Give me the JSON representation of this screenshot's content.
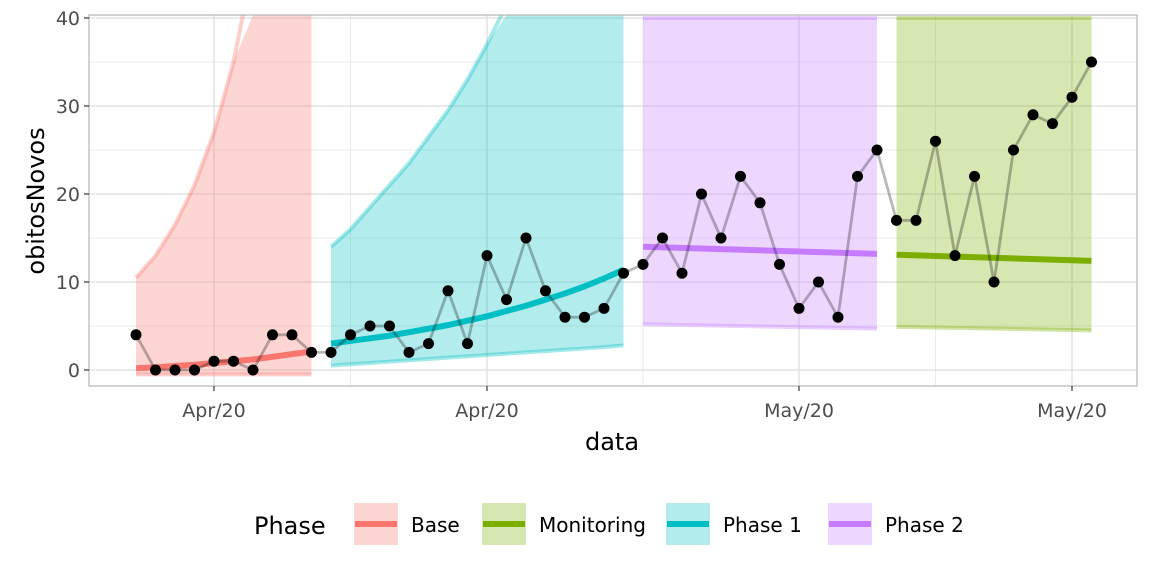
{
  "chart_data": {
    "type": "line",
    "xlabel": "data",
    "ylabel": "obitosNovos",
    "ylim": [
      0,
      40
    ],
    "y_ticks": [
      0,
      10,
      20,
      30,
      40
    ],
    "x_ticks": [
      {
        "day": 4,
        "label": "Apr/20"
      },
      {
        "day": 18,
        "label": "Apr/20"
      },
      {
        "day": 34,
        "label": "May/20"
      },
      {
        "day": 48,
        "label": "May/20"
      }
    ],
    "grid": true,
    "legend": {
      "title": "Phase",
      "placement": "bottom"
    },
    "observed": {
      "days": [
        0,
        1,
        2,
        3,
        4,
        5,
        6,
        7,
        8,
        9,
        10,
        11,
        12,
        13,
        14,
        15,
        16,
        17,
        18,
        19,
        20,
        21,
        22,
        23,
        24,
        25,
        26,
        27,
        28,
        29,
        30,
        31,
        32,
        33,
        34,
        35,
        36,
        37,
        38,
        39,
        40,
        41,
        42,
        43,
        44,
        45,
        46,
        47,
        48,
        49
      ],
      "values": [
        4,
        0,
        0,
        0,
        1,
        1,
        0,
        4,
        4,
        2,
        2,
        4,
        5,
        5,
        2,
        3,
        9,
        3,
        13,
        8,
        15,
        9,
        6,
        6,
        7,
        11,
        12,
        15,
        11,
        20,
        15,
        22,
        19,
        12,
        7,
        10,
        6,
        22,
        25,
        17,
        17,
        26,
        13,
        22,
        10,
        25,
        29,
        28,
        31,
        35
      ]
    },
    "series": [
      {
        "name": "Base",
        "color": "#F8766D",
        "days": [
          0,
          1,
          2,
          3,
          4,
          5,
          6,
          7,
          8,
          9
        ],
        "fit": [
          0.2,
          0.3,
          0.45,
          0.6,
          0.8,
          1.0,
          1.2,
          1.5,
          1.8,
          2.1
        ],
        "upper": [
          10.5,
          13,
          16.5,
          21,
          27,
          35,
          46,
          60,
          78,
          100
        ],
        "lower": [
          -0.5,
          -0.5,
          -0.5,
          -0.5,
          -0.5,
          -0.5,
          -0.5,
          -0.5,
          -0.5,
          -0.5
        ]
      },
      {
        "name": "Phase 1",
        "color": "#00BFC4",
        "days": [
          10,
          11,
          12,
          13,
          14,
          15,
          16,
          17,
          18,
          19,
          20,
          21,
          22,
          23,
          24,
          25
        ],
        "fit": [
          3.0,
          3.3,
          3.6,
          3.9,
          4.3,
          4.7,
          5.1,
          5.6,
          6.1,
          6.7,
          7.3,
          8.0,
          8.7,
          9.5,
          10.4,
          11.4
        ],
        "upper": [
          14,
          16,
          18.5,
          21,
          23.5,
          26.5,
          29.5,
          33,
          37,
          41.5,
          46.5,
          52,
          58,
          65,
          72,
          80
        ],
        "lower": [
          0.5,
          0.65,
          0.8,
          0.95,
          1.1,
          1.25,
          1.4,
          1.55,
          1.7,
          1.85,
          2.0,
          2.15,
          2.3,
          2.45,
          2.6,
          2.8
        ]
      },
      {
        "name": "Phase 2",
        "color": "#C77CFF",
        "days": [
          26,
          38
        ],
        "fit": [
          14.0,
          13.2
        ],
        "upper": [
          40,
          40
        ],
        "lower": [
          5.2,
          4.7
        ]
      },
      {
        "name": "Monitoring",
        "color": "#7CAE00",
        "days": [
          39,
          49
        ],
        "fit": [
          13.1,
          12.4
        ],
        "upper": [
          40,
          40
        ],
        "lower": [
          4.9,
          4.5
        ]
      }
    ],
    "legend_order": [
      "Base",
      "Monitoring",
      "Phase 1",
      "Phase 2"
    ]
  }
}
